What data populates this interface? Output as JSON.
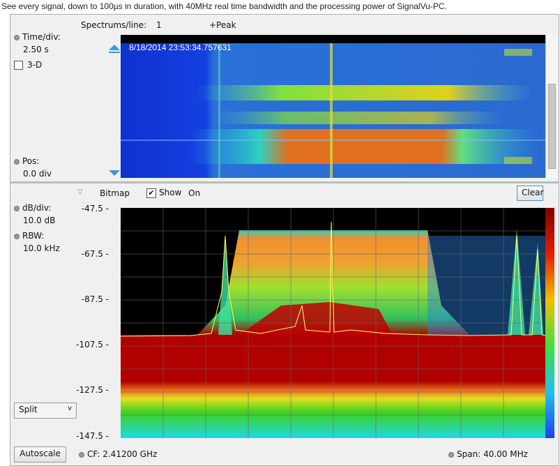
{
  "caption": "See every signal, down to 100µs in duration, with 40MHz real time bandwidth and the processing power of SignalVu-PC.",
  "spectrogram": {
    "spectrums_label": "Spectrums/line:",
    "spectrums_value": "1",
    "detector": "+Peak",
    "time_div_label": "Time/div:",
    "time_div_value": "2.50 s",
    "three_d_label": "3-D",
    "three_d_checked": false,
    "pos_label": "Pos:",
    "pos_value": "0.0 div",
    "timestamp": "8/18/2014 23:53:34.757631"
  },
  "spectrum": {
    "bitmap_label": "Bitmap",
    "show_label": "Show",
    "show_checked": true,
    "show_state": "On",
    "clear_label": "Clear",
    "db_div_label": "dB/div:",
    "db_div_value": "10.0 dB",
    "rbw_label": "RBW:",
    "rbw_value": "10.0 kHz",
    "y_ticks": [
      "-47.5",
      "-67.5",
      "-87.5",
      "-107.5",
      "-127.5",
      "-147.5"
    ],
    "view_select": "Split",
    "autoscale_label": "Autoscale",
    "cf_label": "CF:",
    "cf_value": "2.41200 GHz",
    "span_label": "Span:",
    "span_value": "40.00 MHz"
  },
  "colors": {
    "trace": "#ffff66",
    "accent": "#3399ee"
  }
}
